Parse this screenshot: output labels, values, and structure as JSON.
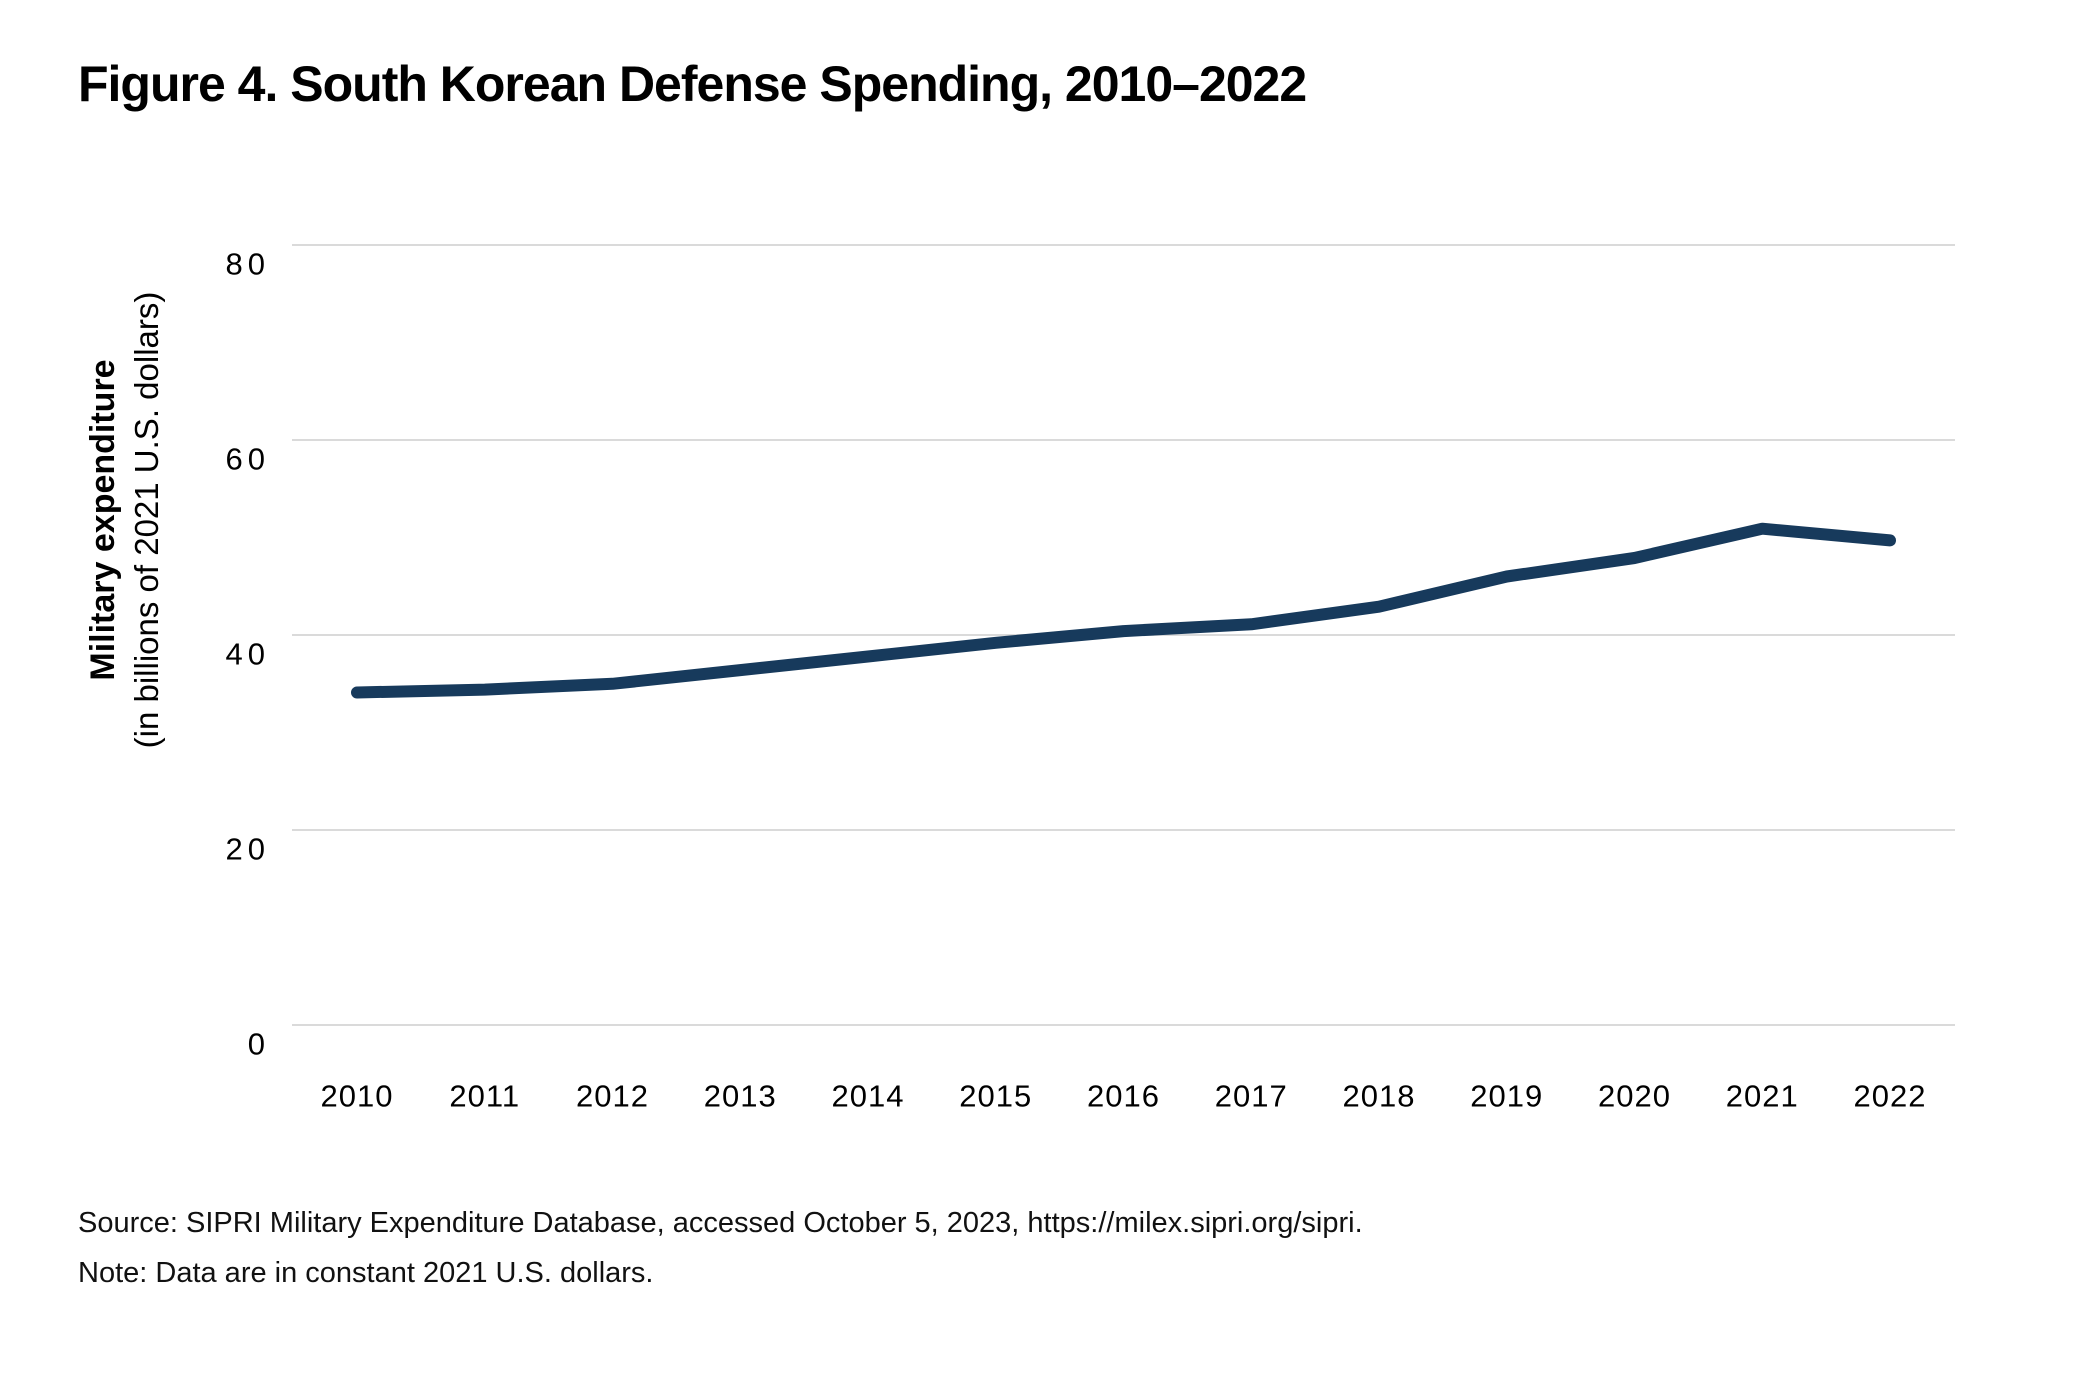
{
  "title": "Figure 4. South Korean Defense Spending, 2010–2022",
  "y_axis": {
    "label_line1": "Military expenditure",
    "label_line2": "(in billions of 2021 U.S. dollars)"
  },
  "source": {
    "line1": "Source: SIPRI Military Expenditure Database, accessed October 5, 2023, https://milex.sipri.org/sipri.",
    "line2": "Note: Data are in constant 2021 U.S. dollars."
  },
  "colors": {
    "line": "#173A5C",
    "grid": "#DADADA",
    "text": "#000000"
  },
  "chart_data": {
    "type": "line",
    "title": "Figure 4. South Korean Defense Spending, 2010–2022",
    "xlabel": "",
    "ylabel": "Military expenditure (in billions of 2021 U.S. dollars)",
    "x": [
      2010,
      2011,
      2012,
      2013,
      2014,
      2015,
      2016,
      2017,
      2018,
      2019,
      2020,
      2021,
      2022
    ],
    "series": [
      {
        "name": "South Korean military expenditure (billions of 2021 U.S. dollars)",
        "values": [
          34.1,
          34.4,
          35.0,
          36.4,
          37.8,
          39.2,
          40.4,
          41.1,
          42.9,
          46.0,
          47.9,
          50.9,
          49.7
        ]
      }
    ],
    "ylim": [
      0,
      80
    ],
    "yticks": [
      0,
      20,
      40,
      60,
      80
    ],
    "grid": true,
    "legend": false
  }
}
